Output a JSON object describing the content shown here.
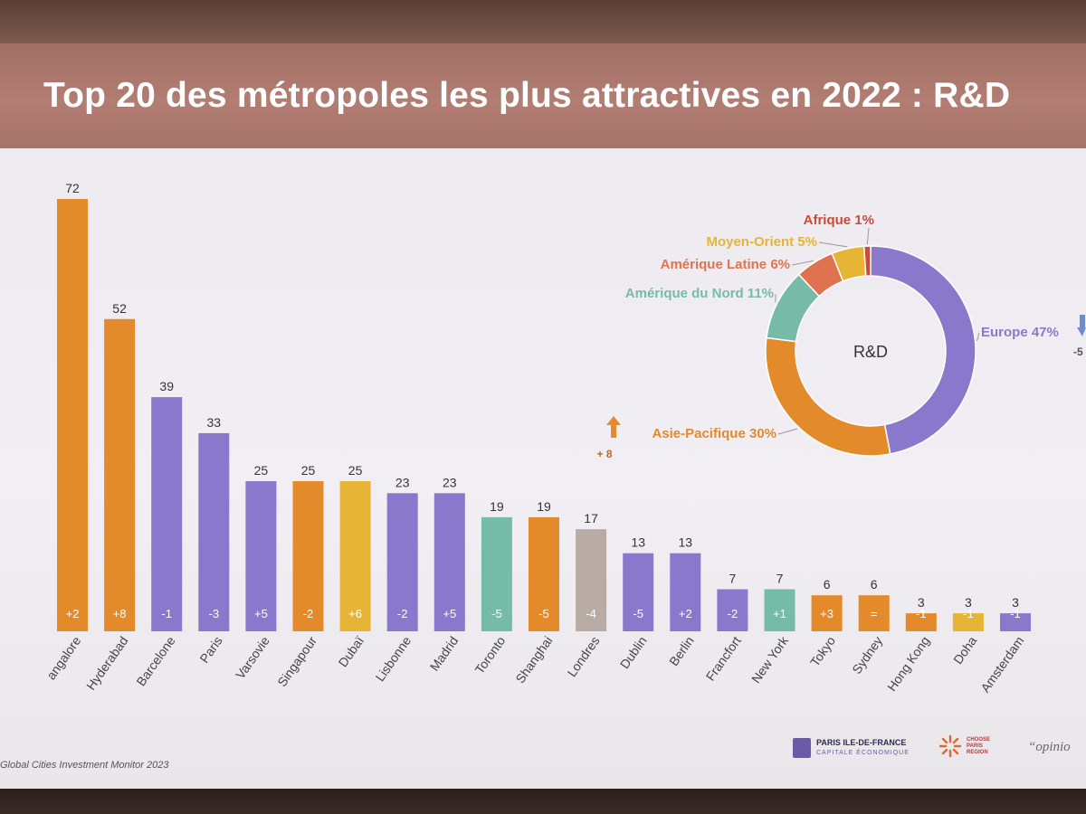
{
  "slide": {
    "title": "Top 20 des métropoles les plus attractives en 2022 : R&D",
    "source": "Global Cities Investment Monitor 2023",
    "logos": {
      "paris_idf_line1": "PARIS ILE-DE-FRANCE",
      "paris_idf_line2": "CAPITALE ÉCONOMIQUE",
      "choose_paris": [
        "CHOOSE",
        "PARIS",
        "REGION"
      ],
      "opinion": "“opinio"
    }
  },
  "colors": {
    "asie_pacifique": "#e38a2b",
    "europe": "#8a78cc",
    "amerique_nord": "#76bba8",
    "moyen_orient": "#e6b535",
    "amerique_latine": "#e0734f",
    "afrique": "#cc4a3b",
    "londres": "#b8aba3"
  },
  "chart_data": [
    {
      "type": "bar",
      "categories": [
        "Bangalore",
        "Hyderabad",
        "Barcelone",
        "Paris",
        "Varsovie",
        "Singapour",
        "Dubaï",
        "Lisbonne",
        "Madrid",
        "Toronto",
        "Shanghai",
        "Londres",
        "Dublin",
        "Berlin",
        "Francfort",
        "New York",
        "Tokyo",
        "Sydney",
        "Hong Kong",
        "Doha",
        "Amsterdam"
      ],
      "category_labels_shown": [
        "angalore",
        "Hyderabad",
        "Barcelone",
        "Paris",
        "Varsovie",
        "Singapour",
        "Dubaï",
        "Lisbonne",
        "Madrid",
        "Toronto",
        "Shanghai",
        "Londres",
        "Dublin",
        "Berlin",
        "Francfort",
        "New York",
        "Tokyo",
        "Sydney",
        "Hong Kong",
        "Doha",
        "Amsterdam"
      ],
      "values": [
        72,
        52,
        39,
        33,
        25,
        25,
        25,
        23,
        23,
        19,
        19,
        17,
        13,
        13,
        7,
        7,
        6,
        6,
        3,
        3,
        3
      ],
      "changes": [
        "+2",
        "+8",
        "-1",
        "-3",
        "+5",
        "-2",
        "+6",
        "-2",
        "+5",
        "-5",
        "-5",
        "-4",
        "-5",
        "+2",
        "-2",
        "+1",
        "+3",
        "=",
        "-1",
        "-1",
        "-1"
      ],
      "regions": [
        "asie_pacifique",
        "asie_pacifique",
        "europe",
        "europe",
        "europe",
        "asie_pacifique",
        "moyen_orient",
        "europe",
        "europe",
        "amerique_nord",
        "asie_pacifique",
        "londres",
        "europe",
        "europe",
        "europe",
        "amerique_nord",
        "asie_pacifique",
        "asie_pacifique",
        "asie_pacifique",
        "moyen_orient",
        "europe"
      ],
      "ylim": [
        0,
        72
      ],
      "grid": false
    },
    {
      "type": "pie",
      "center_label": "R&D",
      "start": "top",
      "direction": "clockwise",
      "slices": [
        {
          "label": "Europe 47%",
          "value": 47,
          "color_key": "europe"
        },
        {
          "label": "Asie-Pacifique 30%",
          "value": 30,
          "color_key": "asie_pacifique"
        },
        {
          "label": "Amérique du Nord 11%",
          "value": 11,
          "color_key": "amerique_nord"
        },
        {
          "label": "Amérique Latine 6%",
          "value": 6,
          "color_key": "amerique_latine"
        },
        {
          "label": "Moyen-Orient 5%",
          "value": 5,
          "color_key": "moyen_orient"
        },
        {
          "label": "Afrique 1%",
          "value": 1,
          "color_key": "afrique"
        }
      ],
      "annotations": {
        "asie_pacifique_change": "+ 8",
        "europe_change": "-5"
      }
    }
  ]
}
